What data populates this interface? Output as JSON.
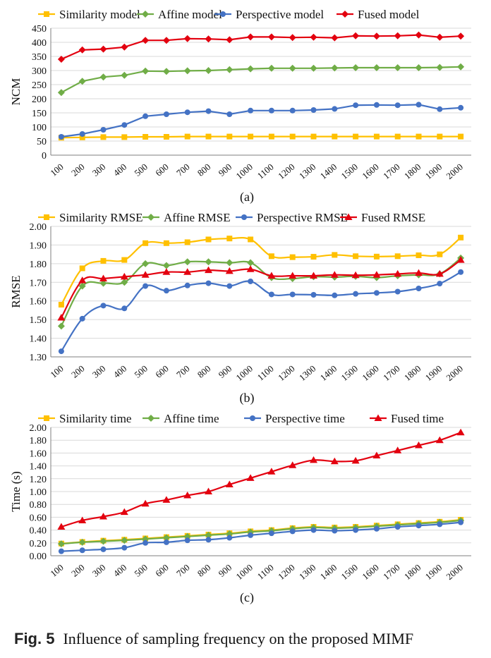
{
  "caption": {
    "label": "Fig. 5",
    "text": "Influence of sampling frequency on the proposed MIMF"
  },
  "colors": {
    "similarity": "#FFC000",
    "affine": "#70AD47",
    "perspective": "#4472C4",
    "fused": "#E3000F"
  },
  "chart_data": [
    {
      "type": "line",
      "panel_label": "(a)",
      "ylabel": "NCM",
      "ylim": [
        0,
        450
      ],
      "yticks": [
        "0",
        "50",
        "100",
        "150",
        "200",
        "250",
        "300",
        "350",
        "400",
        "450"
      ],
      "categories": [
        "100",
        "200",
        "300",
        "400",
        "500",
        "600",
        "700",
        "800",
        "900",
        "1000",
        "1100",
        "1200",
        "1300",
        "1400",
        "1500",
        "1600",
        "1700",
        "1800",
        "1900",
        "2000"
      ],
      "grid": "horizontal",
      "legend_position": "top",
      "series": [
        {
          "name": "Similarity model",
          "marker": "square",
          "color": "#FFC000",
          "values": [
            62,
            63,
            64,
            64,
            65,
            65,
            66,
            66,
            66,
            66,
            66,
            66,
            66,
            66,
            66,
            66,
            66,
            66,
            66,
            66
          ]
        },
        {
          "name": "Affine model",
          "marker": "diamond",
          "color": "#70AD47",
          "values": [
            222,
            262,
            277,
            283,
            298,
            297,
            299,
            300,
            303,
            306,
            308,
            308,
            308,
            309,
            310,
            310,
            310,
            310,
            311,
            313
          ]
        },
        {
          "name": "Perspective model",
          "marker": "circle",
          "color": "#4472C4",
          "values": [
            65,
            75,
            90,
            107,
            138,
            145,
            152,
            156,
            145,
            158,
            158,
            158,
            160,
            164,
            177,
            178,
            177,
            179,
            163,
            168
          ]
        },
        {
          "name": "Fused model",
          "marker": "diamond",
          "color": "#E3000F",
          "values": [
            340,
            373,
            376,
            383,
            407,
            407,
            413,
            412,
            409,
            419,
            419,
            417,
            418,
            416,
            423,
            422,
            423,
            426,
            418,
            422
          ]
        }
      ]
    },
    {
      "type": "line",
      "panel_label": "(b)",
      "ylabel": "RMSE",
      "ylim": [
        1.3,
        2.0
      ],
      "yticks": [
        "1.30",
        "1.40",
        "1.50",
        "1.60",
        "1.70",
        "1.80",
        "1.90",
        "2.00"
      ],
      "categories": [
        "100",
        "200",
        "300",
        "400",
        "500",
        "600",
        "700",
        "800",
        "900",
        "1000",
        "1100",
        "1200",
        "1300",
        "1400",
        "1500",
        "1600",
        "1700",
        "1800",
        "1900",
        "2000"
      ],
      "grid": "horizontal",
      "legend_position": "top",
      "series": [
        {
          "name": "Similarity RMSE",
          "marker": "square",
          "color": "#FFC000",
          "values": [
            1.58,
            1.775,
            1.815,
            1.82,
            1.91,
            1.91,
            1.915,
            1.93,
            1.935,
            1.93,
            1.84,
            1.835,
            1.837,
            1.847,
            1.84,
            1.838,
            1.84,
            1.845,
            1.85,
            1.94
          ]
        },
        {
          "name": "Affine RMSE",
          "marker": "diamond",
          "color": "#70AD47",
          "values": [
            1.465,
            1.68,
            1.695,
            1.7,
            1.8,
            1.79,
            1.81,
            1.81,
            1.805,
            1.805,
            1.725,
            1.72,
            1.73,
            1.728,
            1.732,
            1.725,
            1.735,
            1.74,
            1.745,
            1.83
          ]
        },
        {
          "name": "Perspective RMSE",
          "marker": "circle",
          "color": "#4472C4",
          "values": [
            1.33,
            1.505,
            1.575,
            1.56,
            1.68,
            1.655,
            1.683,
            1.695,
            1.68,
            1.705,
            1.635,
            1.635,
            1.633,
            1.63,
            1.638,
            1.643,
            1.65,
            1.667,
            1.693,
            1.755
          ]
        },
        {
          "name": "Fused RMSE",
          "marker": "triangle",
          "color": "#E3000F",
          "values": [
            1.51,
            1.71,
            1.72,
            1.73,
            1.74,
            1.755,
            1.755,
            1.765,
            1.76,
            1.77,
            1.735,
            1.735,
            1.735,
            1.74,
            1.738,
            1.74,
            1.745,
            1.75,
            1.745,
            1.82
          ]
        }
      ]
    },
    {
      "type": "line",
      "panel_label": "(c)",
      "ylabel": "Time (s)",
      "ylim": [
        0,
        2.0
      ],
      "yticks": [
        "0.00",
        "0.20",
        "0.40",
        "0.60",
        "0.80",
        "1.00",
        "1.20",
        "1.40",
        "1.60",
        "1.80",
        "2.00"
      ],
      "categories": [
        "100",
        "200",
        "300",
        "400",
        "500",
        "600",
        "700",
        "800",
        "900",
        "1000",
        "1100",
        "1200",
        "1300",
        "1400",
        "1500",
        "1600",
        "1700",
        "1800",
        "1900",
        "2000"
      ],
      "grid": "horizontal",
      "legend_position": "top",
      "series": [
        {
          "name": "Similarity time",
          "marker": "square",
          "color": "#FFC000",
          "values": [
            0.19,
            0.215,
            0.235,
            0.25,
            0.27,
            0.29,
            0.31,
            0.33,
            0.35,
            0.38,
            0.4,
            0.43,
            0.45,
            0.44,
            0.45,
            0.47,
            0.49,
            0.51,
            0.53,
            0.56
          ]
        },
        {
          "name": "Affine time",
          "marker": "diamond",
          "color": "#70AD47",
          "values": [
            0.185,
            0.21,
            0.225,
            0.24,
            0.26,
            0.28,
            0.3,
            0.32,
            0.34,
            0.37,
            0.39,
            0.42,
            0.44,
            0.43,
            0.44,
            0.46,
            0.48,
            0.5,
            0.52,
            0.55
          ]
        },
        {
          "name": "Perspective time",
          "marker": "circle",
          "color": "#4472C4",
          "values": [
            0.07,
            0.085,
            0.1,
            0.125,
            0.2,
            0.21,
            0.24,
            0.25,
            0.28,
            0.32,
            0.35,
            0.38,
            0.4,
            0.39,
            0.4,
            0.42,
            0.45,
            0.47,
            0.49,
            0.52
          ]
        },
        {
          "name": "Fused time",
          "marker": "triangle",
          "color": "#E3000F",
          "values": [
            0.45,
            0.55,
            0.61,
            0.68,
            0.81,
            0.87,
            0.94,
            1.0,
            1.11,
            1.21,
            1.31,
            1.41,
            1.49,
            1.47,
            1.48,
            1.56,
            1.64,
            1.72,
            1.8,
            1.92
          ]
        }
      ]
    }
  ]
}
